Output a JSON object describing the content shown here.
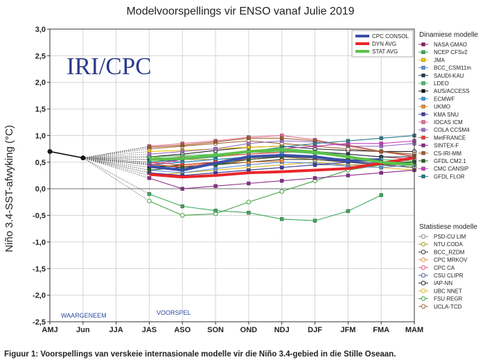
{
  "caption": "Figuur 1: Voorspellings van verskeie internasionale modelle vir die Niño 3.4-gebied in die Stille Oseaan.",
  "chart_data": {
    "type": "line",
    "title": "Modelvoorspellings vir ENSO vanaf Julie 2019",
    "ylabel": "Niño 3.4-SST-afwyking (°C)",
    "xlabel": "",
    "watermark": "IRI/CPC",
    "ylim": [
      -2.5,
      3.0
    ],
    "yticks": [
      3.0,
      2.5,
      2.0,
      1.5,
      1.0,
      0.5,
      0.0,
      -0.5,
      -1.0,
      -1.5,
      -2.0,
      -2.5
    ],
    "ytick_labels": [
      "3,0",
      "2,5",
      "2,0",
      "1,5",
      "1,0",
      "0,5",
      "0,0",
      "-0,5",
      "-1,0",
      "-1,5",
      "-2,0",
      "-2,5"
    ],
    "categories": [
      "AMJ",
      "Jun",
      "JJA",
      "JAS",
      "ASO",
      "SON",
      "OND",
      "NDJ",
      "DJF",
      "JFM",
      "FMA",
      "MAM"
    ],
    "grid": true,
    "annotations": {
      "observed": "WAARGENEEM",
      "forecast": "VOORSPEL"
    },
    "observed": {
      "values": [
        0.7,
        0.58
      ]
    },
    "average_lines": [
      {
        "name": "CPC CONSOL",
        "color": "#3a50a8",
        "values": [
          null,
          null,
          null,
          0.42,
          0.35,
          0.48,
          0.6,
          0.63,
          0.6,
          0.52,
          0.55,
          null
        ]
      },
      {
        "name": "DYN AVG",
        "color": "#e8262b",
        "values": [
          null,
          null,
          null,
          0.27,
          0.22,
          0.25,
          0.3,
          0.32,
          0.35,
          0.38,
          0.48,
          0.58
        ]
      },
      {
        "name": "STAT AVG",
        "color": "#5cc24a",
        "values": [
          null,
          null,
          null,
          0.55,
          0.57,
          0.63,
          0.7,
          0.74,
          0.69,
          0.6,
          0.5,
          0.45
        ]
      }
    ],
    "legend_dynamic_title": "Dinamiese modelle",
    "legend_statistical_title": "Statistiese modelle",
    "dynamic_models": [
      {
        "name": "NASA GMAO",
        "color": "#8b1a5c",
        "values": [
          0.47,
          0.4,
          0.5,
          0.55,
          0.6,
          0.58,
          0.5
        ]
      },
      {
        "name": "NCEP CFSv2",
        "color": "#3aa858",
        "values": [
          -0.1,
          -0.33,
          -0.41,
          -0.45,
          -0.57,
          -0.6,
          -0.42,
          -0.12
        ]
      },
      {
        "name": "JMA",
        "color": "#f2c200",
        "values": [
          0.7,
          0.72,
          0.75,
          0.78,
          0.8
        ]
      },
      {
        "name": "BCC_CSM11m",
        "color": "#5b8fd6",
        "values": [
          0.35,
          0.3,
          0.38,
          0.45,
          0.5,
          0.48,
          0.42,
          0.4,
          0.45
        ]
      },
      {
        "name": "SAUDI-KAU",
        "color": "#1b3f56",
        "values": [
          0.55,
          0.58,
          0.62,
          0.7,
          0.72,
          0.7,
          0.65,
          0.6,
          0.6
        ]
      },
      {
        "name": "LDEO",
        "color": "#4cbb6a",
        "values": [
          0.6,
          0.62,
          0.65,
          0.68,
          0.7,
          0.66,
          0.6,
          0.55,
          0.52
        ]
      },
      {
        "name": "AUS/ACCESS",
        "color": "#111111",
        "values": [
          0.4,
          0.45,
          0.5,
          0.55,
          0.6
        ]
      },
      {
        "name": "ECMWF",
        "color": "#3a9bd8",
        "values": [
          0.45,
          0.5,
          0.55,
          0.6,
          0.65
        ]
      },
      {
        "name": "UKMO",
        "color": "#f08a30",
        "values": [
          0.45,
          0.42,
          0.48,
          0.5,
          0.52
        ]
      },
      {
        "name": "KMA SNU",
        "color": "#3a3a9a",
        "values": [
          0.3,
          0.25,
          0.3,
          0.35,
          0.4,
          0.45,
          0.5,
          0.48,
          0.5
        ]
      },
      {
        "name": "IOCAS ICM",
        "color": "#e86a8a",
        "values": [
          0.8,
          0.85,
          0.9,
          0.97,
          1.0,
          0.92,
          0.8,
          0.7,
          0.6
        ]
      },
      {
        "name": "COLA CCSM4",
        "color": "#9a6cc8",
        "values": [
          0.65,
          0.7,
          0.75,
          0.85,
          0.9,
          0.88,
          0.8,
          0.8,
          0.85
        ]
      },
      {
        "name": "MetFRANCE",
        "color": "#e84030",
        "values": [
          0.5,
          0.45,
          0.5,
          0.55,
          0.6
        ]
      },
      {
        "name": "SINTEX-F",
        "color": "#8b2a8b",
        "values": [
          0.2,
          0.0,
          0.05,
          0.1,
          0.15,
          0.2,
          0.25,
          0.3,
          0.35
        ]
      },
      {
        "name": "CS-IRI-MM",
        "color": "#a05a2c",
        "values": [
          0.78,
          0.82,
          0.88,
          0.95,
          0.95,
          0.9,
          0.82,
          0.7,
          0.62
        ]
      },
      {
        "name": "GFDL CM2.1",
        "color": "#2c5e28",
        "values": [
          0.35,
          0.4,
          0.45,
          0.55,
          0.6,
          0.6,
          0.55,
          0.5,
          0.5
        ]
      },
      {
        "name": "CMC CANSIP",
        "color": "#c23ab8",
        "values": [
          0.45,
          0.55,
          0.6,
          0.7,
          0.75,
          0.8,
          0.85,
          0.85,
          0.9
        ]
      },
      {
        "name": "GFDL FLOR",
        "color": "#2a7a88",
        "values": [
          0.5,
          0.55,
          0.6,
          0.7,
          0.78,
          0.85,
          0.9,
          0.95,
          1.0
        ]
      }
    ],
    "statistical_models": [
      {
        "name": "PSD-CU LIM",
        "color": "#888888",
        "values": [
          0.3,
          0.25,
          0.3,
          0.35,
          0.4,
          0.45,
          0.45,
          0.45,
          0.45
        ]
      },
      {
        "name": "NTU CODA",
        "color": "#a0a020",
        "values": [
          0.6,
          0.55,
          0.55,
          0.58,
          0.6,
          0.55,
          0.5,
          0.45,
          0.4
        ]
      },
      {
        "name": "BCC_RZDM",
        "color": "#333333",
        "values": [
          0.45,
          0.4,
          0.45,
          0.5,
          0.55,
          0.55,
          0.5,
          0.45,
          0.4
        ]
      },
      {
        "name": "CPC MRKOV",
        "color": "#e09040",
        "values": [
          0.5,
          0.55,
          0.6,
          0.65,
          0.7,
          0.7,
          0.65,
          0.6,
          0.55
        ]
      },
      {
        "name": "CPC CA",
        "color": "#e05070",
        "values": [
          0.55,
          0.6,
          0.62,
          0.65,
          0.68,
          0.7,
          0.65,
          0.6,
          0.55
        ]
      },
      {
        "name": "CSU CLIPR",
        "color": "#4a5a8a",
        "values": [
          0.55,
          0.5,
          0.55,
          0.6,
          0.62,
          0.6,
          0.55,
          0.5,
          0.45
        ]
      },
      {
        "name": "IAP-NN",
        "color": "#222222",
        "values": [
          0.6,
          0.65,
          0.72,
          0.78,
          0.8,
          0.75,
          0.72,
          0.7,
          0.7
        ]
      },
      {
        "name": "UBC NNET",
        "color": "#e0b020",
        "values": [
          0.25,
          0.3,
          0.35,
          0.4,
          0.45,
          0.5,
          0.45,
          0.4,
          0.35
        ]
      },
      {
        "name": "FSU REGR",
        "color": "#40a040",
        "values": [
          -0.23,
          -0.5,
          -0.47,
          -0.25,
          -0.05,
          0.15,
          0.35,
          0.45,
          0.5
        ]
      },
      {
        "name": "UCLA-TCD",
        "color": "#a06030",
        "values": [
          0.75,
          0.8,
          0.85,
          0.9,
          0.85,
          0.8,
          0.75,
          0.7,
          0.65
        ]
      }
    ]
  }
}
